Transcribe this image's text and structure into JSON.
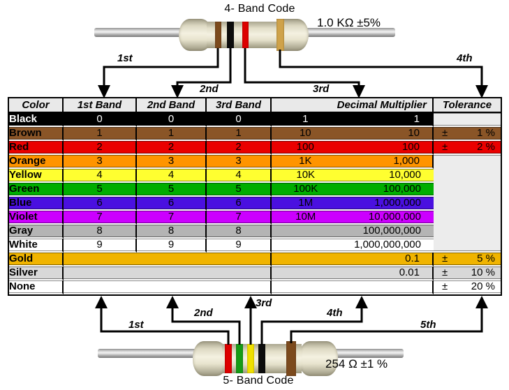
{
  "top_resistor": {
    "title": "4- Band Code",
    "value_label": "1.0 KΩ  ±5%",
    "bands": [
      {
        "name": "brown",
        "hex": "#7c4a1d"
      },
      {
        "name": "black",
        "hex": "#0c0c0c"
      },
      {
        "name": "red",
        "hex": "#dd0000"
      },
      {
        "name": "gold",
        "hex": "#cfa24a"
      }
    ],
    "arrow_labels": [
      "1st",
      "2nd",
      "3rd",
      "4th"
    ]
  },
  "bottom_resistor": {
    "title": "5- Band Code",
    "value_label": "254 Ω  ±1 %",
    "bands": [
      {
        "name": "red",
        "hex": "#dd0000"
      },
      {
        "name": "green",
        "hex": "#169c16"
      },
      {
        "name": "yellow",
        "hex": "#f0e000"
      },
      {
        "name": "black",
        "hex": "#0c0c0c"
      },
      {
        "name": "brown",
        "hex": "#7c4a1d"
      }
    ],
    "arrow_labels": [
      "1st",
      "2nd",
      "3rd",
      "4th",
      "5th"
    ]
  },
  "table": {
    "headers": [
      "Color",
      "1st Band",
      "2nd Band",
      "3rd Band",
      "Decimal Multiplier",
      "Tolerance"
    ],
    "pm_symbol": "±",
    "empty_cell_bg": "#ececec",
    "rows": [
      {
        "color": "Black",
        "bg": "#000000",
        "fg": "#ffffff",
        "band1": "0",
        "band2": "0",
        "band3": "0",
        "mult_abbr": "1",
        "mult_full": "1",
        "tol_cell": "own-empty",
        "tolerance": ""
      },
      {
        "color": "Brown",
        "bg": "#8a5527",
        "fg": "#000000",
        "band1": "1",
        "band2": "1",
        "band3": "1",
        "mult_abbr": "10",
        "mult_full": "10",
        "tol_cell": "value",
        "tolerance": "1 %"
      },
      {
        "color": "Red",
        "bg": "#ea0000",
        "fg": "#000000",
        "band1": "2",
        "band2": "2",
        "band3": "2",
        "mult_abbr": "100",
        "mult_full": "100",
        "tol_cell": "value",
        "tolerance": "2 %"
      },
      {
        "color": "Orange",
        "bg": "#ff9400",
        "fg": "#000000",
        "band1": "3",
        "band2": "3",
        "band3": "3",
        "mult_abbr": "1K",
        "mult_full": "1,000",
        "tol_cell": "merged-start",
        "merged_rows": 7,
        "tolerance": ""
      },
      {
        "color": "Yellow",
        "bg": "#ffff30",
        "fg": "#000000",
        "band1": "4",
        "band2": "4",
        "band3": "4",
        "mult_abbr": "10K",
        "mult_full": "10,000",
        "tol_cell": "skip",
        "tolerance": ""
      },
      {
        "color": "Green",
        "bg": "#00ad00",
        "fg": "#000000",
        "band1": "5",
        "band2": "5",
        "band3": "5",
        "mult_abbr": "100K",
        "mult_full": "100,000",
        "tol_cell": "skip",
        "tolerance": ""
      },
      {
        "color": "Blue",
        "bg": "#4a10e0",
        "fg": "#000000",
        "band1": "6",
        "band2": "6",
        "band3": "6",
        "mult_abbr": "1M",
        "mult_full": "1,000,000",
        "tol_cell": "skip",
        "tolerance": ""
      },
      {
        "color": "Violet",
        "bg": "#cc00ff",
        "fg": "#000000",
        "band1": "7",
        "band2": "7",
        "band3": "7",
        "mult_abbr": "10M",
        "mult_full": "10,000,000",
        "tol_cell": "skip",
        "tolerance": ""
      },
      {
        "color": "Gray",
        "bg": "#b4b4b4",
        "fg": "#000000",
        "band1": "8",
        "band2": "8",
        "band3": "8",
        "mult_abbr": "",
        "mult_full": "100,000,000",
        "tol_cell": "skip",
        "tolerance": ""
      },
      {
        "color": "White",
        "bg": "#ffffff",
        "fg": "#000000",
        "band1": "9",
        "band2": "9",
        "band3": "9",
        "mult_abbr": "",
        "mult_full": "1,000,000,000",
        "tol_cell": "skip",
        "tolerance": ""
      },
      {
        "color": "Gold",
        "bg": "#f0b400",
        "fg": "#000000",
        "bands_merged": true,
        "mult_abbr": "",
        "mult_full": "0.1",
        "tol_cell": "value",
        "tolerance": "5 %"
      },
      {
        "color": "Silver",
        "bg": "#d8d8d8",
        "fg": "#000000",
        "bands_merged": true,
        "mult_abbr": "",
        "mult_full": "0.01",
        "tol_cell": "value",
        "tolerance": "10 %"
      },
      {
        "color": "None",
        "bg": "#ffffff",
        "fg": "#000000",
        "bands_merged": true,
        "mult_abbr": "",
        "mult_full": "",
        "tol_cell": "value",
        "tolerance": "20 %"
      }
    ]
  }
}
